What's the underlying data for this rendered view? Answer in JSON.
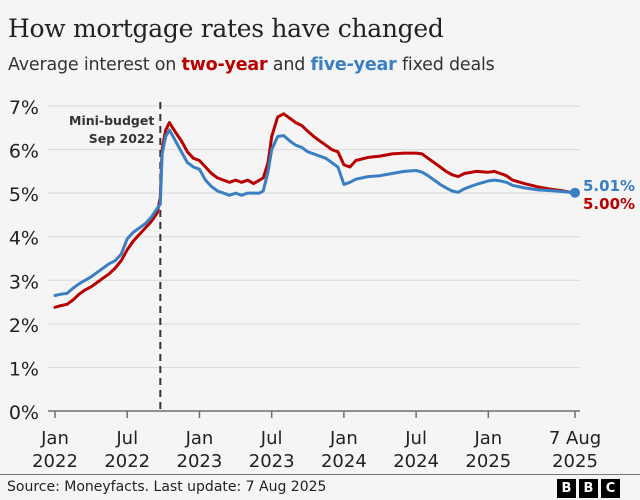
{
  "header": {
    "title": "How mortgage rates have changed",
    "subtitle_prefix": "Average interest on ",
    "subtitle_two": "two-year",
    "subtitle_mid": " and ",
    "subtitle_five": "five-year",
    "subtitle_suffix": " fixed deals"
  },
  "footer": {
    "source": "Source: Moneyfacts. Last update: 7 Aug 2025",
    "logo_letters": [
      "B",
      "B",
      "C"
    ]
  },
  "colors": {
    "two_year": "#b80000",
    "five_year": "#3a7fc1",
    "grid": "#d9d9d9",
    "axis": "#6e6e6e",
    "annotation_line": "#333333"
  },
  "chart_data": {
    "type": "line",
    "title": "How mortgage rates have changed",
    "subtitle": "Average interest on two-year and five-year fixed deals",
    "xlabel": "",
    "ylabel": "",
    "x_unit": "months since Jan 2022",
    "xlim": [
      0,
      43.2
    ],
    "ylim": [
      0,
      7
    ],
    "grid": true,
    "y_ticks": [
      0,
      1,
      2,
      3,
      4,
      5,
      6,
      7
    ],
    "y_tick_labels": [
      "0%",
      "1%",
      "2%",
      "3%",
      "4%",
      "5%",
      "6%",
      "7%"
    ],
    "x_ticks": [
      {
        "x": 0,
        "line1": "Jan",
        "line2": "2022"
      },
      {
        "x": 6,
        "line1": "Jul",
        "line2": "2022"
      },
      {
        "x": 12,
        "line1": "Jan",
        "line2": "2023"
      },
      {
        "x": 18,
        "line1": "Jul",
        "line2": "2023"
      },
      {
        "x": 24,
        "line1": "Jan",
        "line2": "2024"
      },
      {
        "x": 30,
        "line1": "Jul",
        "line2": "2024"
      },
      {
        "x": 36,
        "line1": "Jan",
        "line2": "2025"
      },
      {
        "x": 43.2,
        "line1": "7 Aug",
        "line2": "2025"
      }
    ],
    "annotation": {
      "x": 8.75,
      "line1": "Mini-budget",
      "line2": "Sep 2022"
    },
    "x": [
      0,
      0.5,
      1,
      1.5,
      2,
      2.5,
      3,
      3.5,
      4,
      4.5,
      5,
      5.5,
      6,
      6.5,
      7,
      7.5,
      8,
      8.5,
      8.75,
      8.9,
      9.2,
      9.5,
      10,
      10.5,
      11,
      11.5,
      12,
      12.5,
      13,
      13.5,
      14,
      14.5,
      15,
      15.5,
      16,
      16.5,
      17,
      17.3,
      17.7,
      18,
      18.5,
      19,
      19.5,
      20,
      20.5,
      21,
      21.5,
      22,
      22.5,
      23,
      23.5,
      24,
      24.5,
      25,
      26,
      27,
      28,
      29,
      30,
      30.5,
      31,
      31.5,
      32,
      32.5,
      33,
      33.5,
      34,
      35,
      36,
      36.5,
      37,
      37.5,
      38,
      39,
      40,
      41,
      42,
      43.2
    ],
    "series": [
      {
        "name": "two-year",
        "color": "#b80000",
        "end_label": "5.00%",
        "values": [
          2.38,
          2.42,
          2.45,
          2.55,
          2.68,
          2.78,
          2.85,
          2.95,
          3.05,
          3.15,
          3.28,
          3.45,
          3.7,
          3.9,
          4.05,
          4.2,
          4.35,
          4.55,
          4.9,
          6.0,
          6.45,
          6.62,
          6.4,
          6.2,
          5.95,
          5.8,
          5.75,
          5.6,
          5.45,
          5.35,
          5.3,
          5.25,
          5.3,
          5.25,
          5.3,
          5.22,
          5.3,
          5.35,
          5.7,
          6.3,
          6.75,
          6.82,
          6.72,
          6.62,
          6.55,
          6.42,
          6.3,
          6.2,
          6.1,
          6.0,
          5.95,
          5.65,
          5.6,
          5.75,
          5.82,
          5.85,
          5.9,
          5.92,
          5.92,
          5.9,
          5.8,
          5.7,
          5.6,
          5.5,
          5.42,
          5.38,
          5.45,
          5.5,
          5.48,
          5.5,
          5.45,
          5.4,
          5.3,
          5.22,
          5.15,
          5.1,
          5.06,
          5.0
        ]
      },
      {
        "name": "five-year",
        "color": "#3a7fc1",
        "end_label": "5.01%",
        "values": [
          2.65,
          2.68,
          2.7,
          2.82,
          2.92,
          3.0,
          3.08,
          3.18,
          3.28,
          3.38,
          3.45,
          3.6,
          3.95,
          4.1,
          4.2,
          4.3,
          4.45,
          4.65,
          4.75,
          5.9,
          6.3,
          6.45,
          6.2,
          5.95,
          5.7,
          5.6,
          5.55,
          5.3,
          5.15,
          5.05,
          5.0,
          4.95,
          5.0,
          4.95,
          5.0,
          5.0,
          5.0,
          5.05,
          5.5,
          6.0,
          6.3,
          6.32,
          6.2,
          6.1,
          6.05,
          5.95,
          5.9,
          5.85,
          5.8,
          5.7,
          5.6,
          5.2,
          5.25,
          5.32,
          5.38,
          5.4,
          5.45,
          5.5,
          5.52,
          5.48,
          5.4,
          5.3,
          5.2,
          5.12,
          5.05,
          5.02,
          5.1,
          5.2,
          5.28,
          5.3,
          5.28,
          5.25,
          5.18,
          5.12,
          5.08,
          5.06,
          5.04,
          5.01
        ]
      }
    ]
  }
}
